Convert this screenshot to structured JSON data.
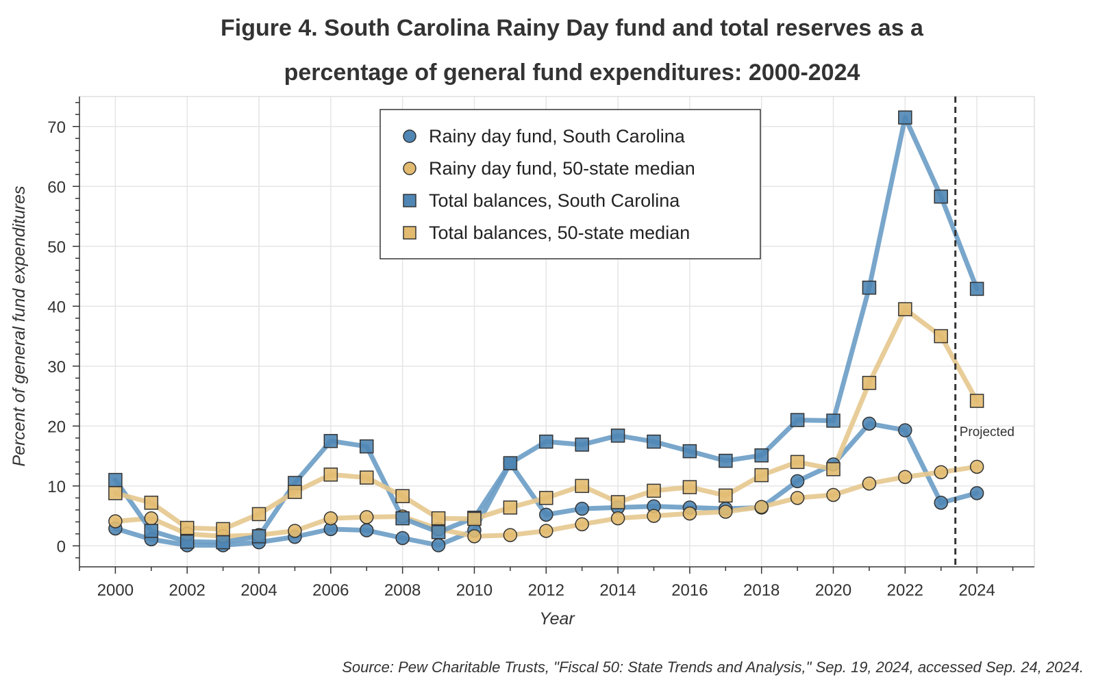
{
  "chart_data": {
    "type": "line",
    "title_lines": [
      "Figure 4. South Carolina Rainy Day fund and total reserves as a",
      "percentage of general fund expenditures: 2000-2024"
    ],
    "xlabel": "Year",
    "ylabel": "Percent of general fund expenditures",
    "source": "Source: Pew Charitable Trusts, \"Fiscal 50: State Trends and Analysis,\" Sep. 19, 2024, accessed Sep. 24, 2024.",
    "xlim": [
      1999,
      2025.6
    ],
    "ylim": [
      -3.5,
      75
    ],
    "x_ticks": [
      2000,
      2002,
      2004,
      2006,
      2008,
      2010,
      2012,
      2014,
      2016,
      2018,
      2020,
      2022,
      2024
    ],
    "y_ticks": [
      0,
      10,
      20,
      30,
      40,
      50,
      60,
      70
    ],
    "grid": true,
    "legend_position": "top-center",
    "annotation": {
      "x": 2023.4,
      "label": "Projected"
    },
    "x": [
      2000,
      2001,
      2002,
      2003,
      2004,
      2005,
      2006,
      2007,
      2008,
      2009,
      2010,
      2011,
      2012,
      2013,
      2014,
      2015,
      2016,
      2017,
      2018,
      2019,
      2020,
      2021,
      2022,
      2023,
      2024
    ],
    "series": [
      {
        "name": "Rainy day fund, South Carolina",
        "marker": "circle",
        "color": "#4f86b4",
        "line_color": "#6a9cc5",
        "values": [
          2.9,
          1.1,
          0.1,
          0.1,
          0.6,
          1.5,
          2.8,
          2.6,
          1.3,
          0.1,
          2.6,
          13.8,
          5.2,
          6.2,
          6.4,
          6.6,
          6.4,
          6.2,
          6.4,
          10.8,
          13.6,
          20.4,
          19.3,
          7.2,
          8.8
        ]
      },
      {
        "name": "Rainy day fund, 50-state median",
        "marker": "circle",
        "color": "#e2bb70",
        "line_color": "#e6c88e",
        "values": [
          4.1,
          4.6,
          2.0,
          1.6,
          1.8,
          2.5,
          4.6,
          4.8,
          4.9,
          2.8,
          1.6,
          1.8,
          2.5,
          3.6,
          4.6,
          5.0,
          5.4,
          5.7,
          6.5,
          8.0,
          8.5,
          10.4,
          11.5,
          12.3,
          13.2
        ]
      },
      {
        "name": "Total balances, South Carolina",
        "marker": "square",
        "color": "#4f86b4",
        "line_color": "#6a9cc5",
        "values": [
          11.0,
          2.5,
          0.7,
          0.6,
          1.6,
          10.5,
          17.5,
          16.6,
          4.6,
          2.3,
          4.7,
          13.8,
          17.4,
          16.9,
          18.4,
          17.4,
          15.8,
          14.2,
          15.1,
          21.0,
          20.9,
          43.1,
          71.5,
          58.3,
          42.9
        ]
      },
      {
        "name": "Total balances, 50-state median",
        "marker": "square",
        "color": "#e2bb70",
        "line_color": "#e6c88e",
        "values": [
          8.8,
          7.2,
          3.0,
          2.8,
          5.3,
          9.0,
          11.9,
          11.4,
          8.3,
          4.6,
          4.5,
          6.4,
          8.0,
          10.0,
          7.3,
          9.2,
          9.8,
          8.4,
          11.8,
          14.0,
          12.8,
          27.2,
          39.5,
          35.0,
          24.2
        ]
      }
    ]
  }
}
